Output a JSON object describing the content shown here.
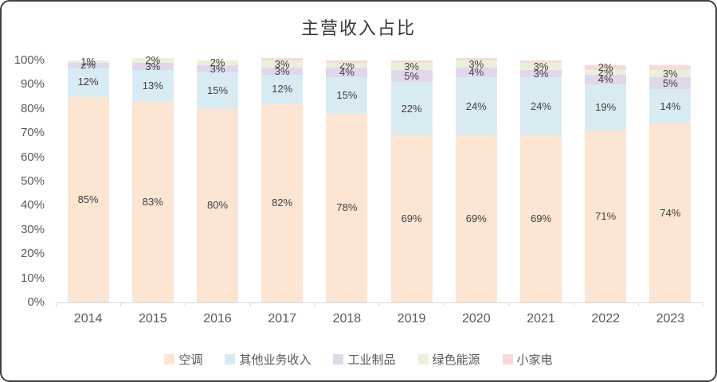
{
  "frame": {
    "border_color": "#404040",
    "background": "#ffffff"
  },
  "chart_data": {
    "type": "bar",
    "stacked": true,
    "percent_stacked": true,
    "title": "主营收入占比",
    "xlabel": "",
    "ylabel": "",
    "ylim": [
      0,
      100
    ],
    "grid": false,
    "legend_position": "bottom",
    "axis_color": "#d9d9d9",
    "tick_text_color": "#595959",
    "label_text_color": "#3f3f3f",
    "y_ticks": [
      "0%",
      "10%",
      "20%",
      "30%",
      "40%",
      "50%",
      "60%",
      "70%",
      "80%",
      "90%",
      "100%"
    ],
    "categories": [
      "2014",
      "2015",
      "2016",
      "2017",
      "2018",
      "2019",
      "2020",
      "2021",
      "2022",
      "2023"
    ],
    "series": [
      {
        "name": "空调",
        "color": "#FCE5D3",
        "values": [
          85,
          83,
          80,
          82,
          78,
          69,
          69,
          69,
          71,
          74
        ],
        "labels": [
          "85%",
          "83%",
          "80%",
          "82%",
          "78%",
          "69%",
          "69%",
          "69%",
          "71%",
          "74%"
        ]
      },
      {
        "name": "其他业务收入",
        "color": "#D9EBF2",
        "values": [
          12,
          13,
          15,
          12,
          15,
          22,
          24,
          24,
          19,
          14
        ],
        "labels": [
          "12%",
          "13%",
          "15%",
          "12%",
          "15%",
          "22%",
          "24%",
          "24%",
          "19%",
          "14%"
        ]
      },
      {
        "name": "工业制品",
        "color": "#E0D7EB",
        "values": [
          2,
          3,
          3,
          3,
          4,
          5,
          4,
          3,
          4,
          5
        ],
        "labels": [
          "2%",
          "3%",
          "3%",
          "3%",
          "4%",
          "5%",
          "4%",
          "3%",
          "4%",
          "5%"
        ]
      },
      {
        "name": "绿色能源",
        "color": "#EBF0DB",
        "values": [
          1,
          2,
          2,
          3,
          2,
          3,
          3,
          3,
          2,
          3
        ],
        "labels": [
          "1%",
          "2%",
          "2%",
          "3%",
          "2%",
          "3%",
          "3%",
          "3%",
          "2%",
          "3%"
        ]
      },
      {
        "name": "小家电",
        "color": "#F6DAD8",
        "values": [
          0,
          0,
          0,
          1,
          1,
          1,
          1,
          1,
          2,
          2
        ],
        "labels": [
          null,
          null,
          null,
          null,
          null,
          null,
          null,
          null,
          "2%",
          null
        ]
      }
    ]
  }
}
